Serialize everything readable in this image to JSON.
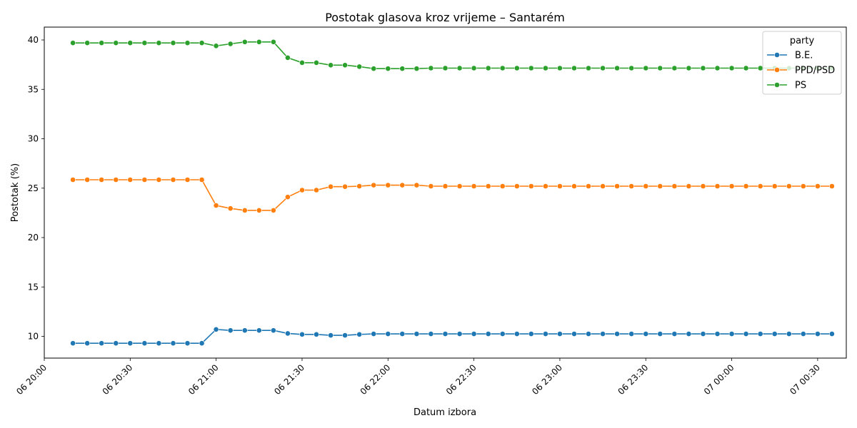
{
  "chart_data": {
    "type": "line",
    "title": "Postotak glasova kroz vrijeme – Santarém",
    "xlabel": "Datum izbora",
    "ylabel": "Postotak (%)",
    "x_range": [
      "06 20:00",
      "07 00:40"
    ],
    "ylim": [
      7.8,
      41.3
    ],
    "x_ticks": [
      "06 20:00",
      "06 20:30",
      "06 21:00",
      "06 21:30",
      "06 22:00",
      "06 22:30",
      "06 23:00",
      "06 23:30",
      "07 00:00",
      "07 00:30"
    ],
    "y_ticks": [
      10,
      15,
      20,
      25,
      30,
      35,
      40
    ],
    "grid": false,
    "legend": {
      "title": "party",
      "position": "top-right"
    },
    "x": [
      "06 20:10",
      "06 20:15",
      "06 20:20",
      "06 20:25",
      "06 20:30",
      "06 20:35",
      "06 20:40",
      "06 20:45",
      "06 20:50",
      "06 20:55",
      "06 21:00",
      "06 21:05",
      "06 21:10",
      "06 21:15",
      "06 21:20",
      "06 21:25",
      "06 21:30",
      "06 21:35",
      "06 21:40",
      "06 21:45",
      "06 21:50",
      "06 21:55",
      "06 22:00",
      "06 22:05",
      "06 22:10",
      "06 22:15",
      "06 22:20",
      "06 22:25",
      "06 22:30",
      "06 22:35",
      "06 22:40",
      "06 22:45",
      "06 22:50",
      "06 22:55",
      "06 23:00",
      "06 23:05",
      "06 23:10",
      "06 23:15",
      "06 23:20",
      "06 23:25",
      "06 23:30",
      "06 23:35",
      "06 23:40",
      "06 23:45",
      "06 23:50",
      "06 23:55",
      "07 00:00",
      "07 00:05",
      "07 00:10",
      "07 00:15",
      "07 00:20",
      "07 00:25",
      "07 00:30",
      "07 00:35"
    ],
    "series": [
      {
        "name": "B.E.",
        "color": "#1f77b4",
        "values": [
          9.3,
          9.3,
          9.3,
          9.3,
          9.3,
          9.3,
          9.3,
          9.3,
          9.3,
          9.3,
          10.7,
          10.6,
          10.6,
          10.6,
          10.6,
          10.3,
          10.2,
          10.2,
          10.1,
          10.1,
          10.2,
          10.25,
          10.25,
          10.25,
          10.25,
          10.25,
          10.25,
          10.25,
          10.25,
          10.25,
          10.25,
          10.25,
          10.25,
          10.25,
          10.25,
          10.25,
          10.25,
          10.25,
          10.25,
          10.25,
          10.25,
          10.25,
          10.25,
          10.25,
          10.25,
          10.25,
          10.25,
          10.25,
          10.25,
          10.25,
          10.25,
          10.25,
          10.25,
          10.25
        ]
      },
      {
        "name": "PPD/PSD",
        "color": "#ff7f0e",
        "values": [
          25.85,
          25.85,
          25.85,
          25.85,
          25.85,
          25.85,
          25.85,
          25.85,
          25.85,
          25.85,
          23.25,
          22.95,
          22.75,
          22.75,
          22.75,
          24.1,
          24.8,
          24.8,
          25.15,
          25.15,
          25.2,
          25.3,
          25.3,
          25.3,
          25.3,
          25.2,
          25.2,
          25.2,
          25.2,
          25.2,
          25.2,
          25.2,
          25.2,
          25.2,
          25.2,
          25.2,
          25.2,
          25.2,
          25.2,
          25.2,
          25.2,
          25.2,
          25.2,
          25.2,
          25.2,
          25.2,
          25.2,
          25.2,
          25.2,
          25.2,
          25.2,
          25.2,
          25.2,
          25.2
        ]
      },
      {
        "name": "PS",
        "color": "#2ca02c",
        "values": [
          39.7,
          39.7,
          39.7,
          39.7,
          39.7,
          39.7,
          39.7,
          39.7,
          39.7,
          39.7,
          39.4,
          39.6,
          39.8,
          39.8,
          39.8,
          38.2,
          37.7,
          37.7,
          37.45,
          37.45,
          37.3,
          37.1,
          37.1,
          37.1,
          37.1,
          37.15,
          37.15,
          37.15,
          37.15,
          37.15,
          37.15,
          37.15,
          37.15,
          37.15,
          37.15,
          37.15,
          37.15,
          37.15,
          37.15,
          37.15,
          37.15,
          37.15,
          37.15,
          37.15,
          37.15,
          37.15,
          37.15,
          37.15,
          37.15,
          37.15,
          37.15,
          37.15,
          37.15,
          37.15
        ]
      }
    ]
  }
}
